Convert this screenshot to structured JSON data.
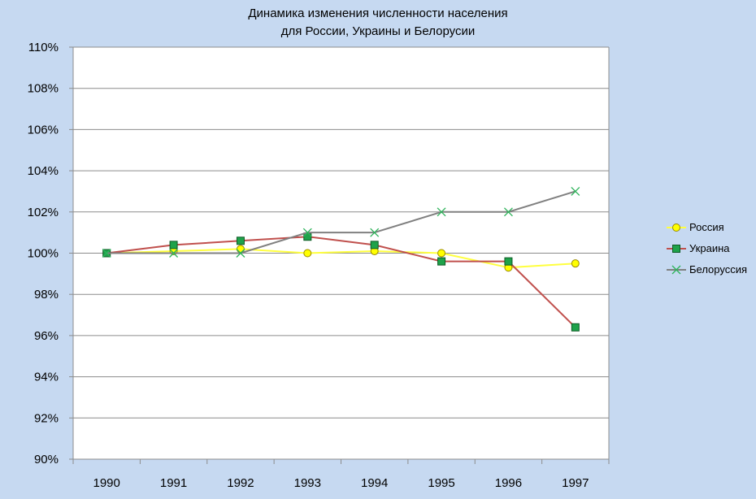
{
  "chart_data": {
    "type": "line",
    "title_line1": "Динамика изменения  численности населения",
    "title_line2": "для России, Украины и Белорусии",
    "categories": [
      "1990",
      "1991",
      "1992",
      "1993",
      "1994",
      "1995",
      "1996",
      "1997"
    ],
    "ylim": [
      90,
      110
    ],
    "y_ticks": [
      "90%",
      "92%",
      "94%",
      "96%",
      "98%",
      "100%",
      "102%",
      "104%",
      "106%",
      "108%",
      "110%"
    ],
    "grid": true,
    "legend_position": "right",
    "series": [
      {
        "name": "Россия",
        "values": [
          100.0,
          100.1,
          100.2,
          100.0,
          100.1,
          100.0,
          99.3,
          99.5
        ],
        "line_color": "#ffff3f",
        "marker": "circle",
        "marker_fill": "#ffff00",
        "marker_stroke": "#9a8a00"
      },
      {
        "name": "Украина",
        "values": [
          100.0,
          100.4,
          100.6,
          100.8,
          100.4,
          99.6,
          99.6,
          96.4
        ],
        "line_color": "#c0504d",
        "marker": "square",
        "marker_fill": "#1fa24a",
        "marker_stroke": "#0d5a25"
      },
      {
        "name": "Белоруссия",
        "values": [
          100.0,
          100.0,
          100.0,
          101.0,
          101.0,
          102.0,
          102.0,
          103.0
        ],
        "line_color": "#808080",
        "marker": "x",
        "marker_fill": "none",
        "marker_stroke": "#2db35a"
      }
    ]
  }
}
